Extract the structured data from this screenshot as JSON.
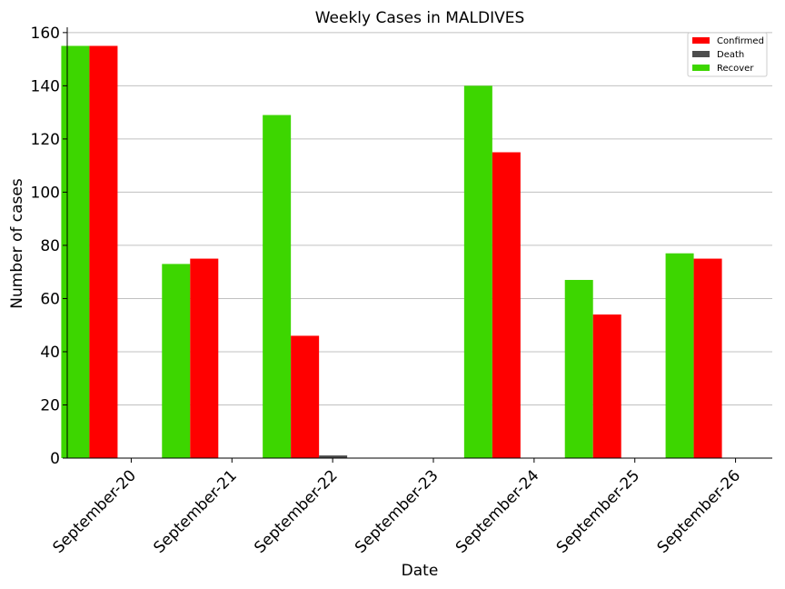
{
  "colors": {
    "confirmed": "#ff0000",
    "death": "#4d4d4d",
    "recover": "#3dd600",
    "grid": "#c0c0c0",
    "axis": "#000000"
  },
  "chart_data": {
    "type": "bar",
    "title": "Weekly Cases in MALDIVES",
    "xlabel": "Date",
    "ylabel": "Number of cases",
    "categories": [
      "September-20",
      "September-21",
      "September-22",
      "September-23",
      "September-24",
      "September-25",
      "September-26"
    ],
    "ylim": [
      0,
      162
    ],
    "yticks": [
      0,
      20,
      40,
      60,
      80,
      100,
      120,
      140,
      160
    ],
    "grid": "horizontal",
    "legend_position": "top-right",
    "series": [
      {
        "name": "Recover",
        "color": "#3dd600",
        "values": [
          155,
          73,
          129,
          0,
          140,
          67,
          77
        ]
      },
      {
        "name": "Confirmed",
        "color": "#ff0000",
        "values": [
          155,
          75,
          46,
          0,
          115,
          54,
          75
        ]
      },
      {
        "name": "Death",
        "color": "#4d4d4d",
        "values": [
          0,
          0,
          1,
          0,
          0,
          0,
          0
        ]
      }
    ],
    "legend": [
      "Confirmed",
      "Death",
      "Recover"
    ]
  }
}
